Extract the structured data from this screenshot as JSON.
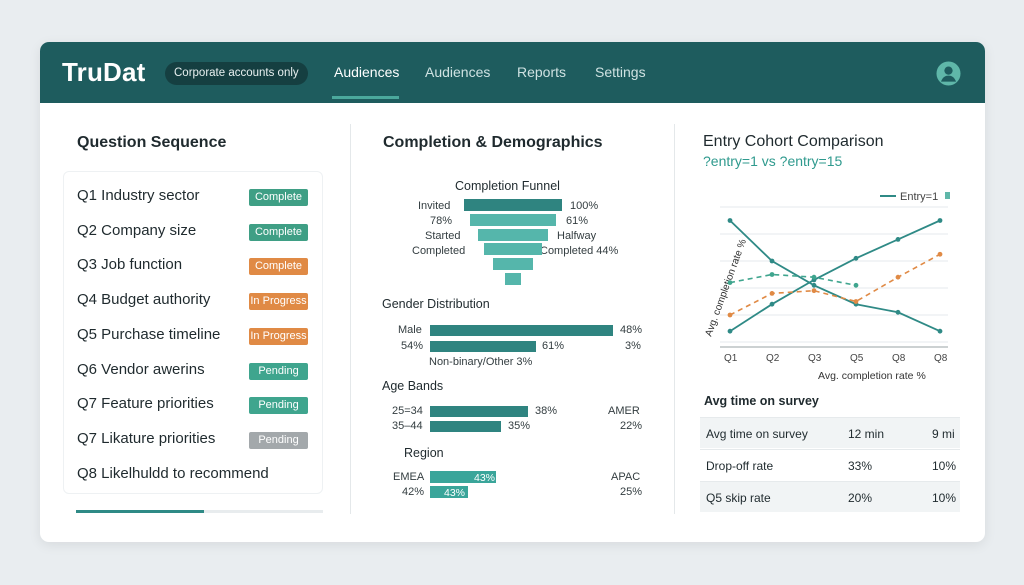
{
  "header": {
    "logo": "TruDat",
    "account_pill": "Corporate accounts only",
    "nav": [
      {
        "label": "Audiences",
        "active": true
      },
      {
        "label": "Audiences",
        "active": false
      },
      {
        "label": "Reports",
        "active": false
      },
      {
        "label": "Settings",
        "active": false
      }
    ],
    "avatar_icon": "user-avatar-icon"
  },
  "question_panel": {
    "title": "Question Sequence",
    "questions": [
      {
        "label": "Q1 Industry sector",
        "status": "Complete",
        "color": "#3f9f85"
      },
      {
        "label": "Q2 Company size",
        "status": "Complete",
        "color": "#3f9f85"
      },
      {
        "label": "Q3 Job function",
        "status": "Complete",
        "color": "#e08a45"
      },
      {
        "label": "Q4 Budget authority",
        "status": "In Progress",
        "color": "#e08a45"
      },
      {
        "label": "Q5 Purchase timeline",
        "status": "In Progress",
        "color": "#e08a45"
      },
      {
        "label": "Q6 Vendor awerins",
        "status": "Pending",
        "color": "#3fa58e"
      },
      {
        "label": "Q7 Feature priorities",
        "status": "Pending",
        "color": "#3fa58e"
      },
      {
        "label": "Q7 Likature priorities",
        "status": "Pending",
        "color": "#a3a8ab"
      },
      {
        "label": "Q8 Likelhuldd to recommend",
        "status": "",
        "color": ""
      }
    ],
    "progress_fraction": 0.52
  },
  "demographics_panel": {
    "title": "Completion & Demographics",
    "funnel": {
      "title": "Completion Funnel",
      "left_labels": [
        "Invited",
        "78%",
        "Started",
        "Completed"
      ],
      "right_labels": [
        "100%",
        "61%",
        "Halfway",
        "Completed 44%"
      ],
      "widths": [
        1.0,
        0.88,
        0.72,
        0.6,
        0.41,
        0.17
      ]
    },
    "gender": {
      "title": "Gender Distribution",
      "rows": [
        {
          "left": "Male",
          "right": "48%",
          "value": 1.0
        },
        {
          "left": "54%",
          "right": "3%",
          "mid": "61%",
          "value": 0.5
        }
      ],
      "note": "Non-binary/Other 3%"
    },
    "age": {
      "title": "Age Bands",
      "rows": [
        {
          "left": "25=34",
          "mid": "38%",
          "right": "AMER",
          "right_value": "",
          "value": 1.0
        },
        {
          "left": "35–44",
          "mid": "35%",
          "right": "22%",
          "value": 0.72
        }
      ]
    },
    "region": {
      "title": "Region",
      "rows": [
        {
          "left": "EMEA",
          "bar_label": "43%",
          "right": "APAC",
          "value": 1.0
        },
        {
          "left": "42%",
          "bar_label": "43%",
          "right": "25%",
          "value": 0.57
        }
      ]
    }
  },
  "cohort_panel": {
    "title": "Entry Cohort Comparison",
    "subtitle": "?entry=1 vs ?entry=15",
    "table_title": "Avg time on survey",
    "table_rows": [
      {
        "metric": "Avg time on survey",
        "a": "12 min",
        "b": "9 mi"
      },
      {
        "metric": "Drop-off rate",
        "a": "33%",
        "b": "10%"
      },
      {
        "metric": "Q5 skip rate",
        "a": "20%",
        "b": "10%"
      }
    ]
  },
  "chart_data": {
    "type": "line",
    "title": "",
    "xlabel": "Avg. completion rate %",
    "ylabel": "Avg. completion rate %",
    "categories": [
      "Q1",
      "Q2",
      "Q3",
      "Q5",
      "Q8",
      "Q8"
    ],
    "legend": [
      "Entry=1"
    ],
    "legend_position": "top-right",
    "grid": true,
    "ylim": [
      0,
      100
    ],
    "series": [
      {
        "name": "Entry=1",
        "color": "#2f8a86",
        "style": "solid",
        "values": [
          90,
          60,
          42,
          28,
          22,
          8
        ]
      },
      {
        "color": "#2f8a86",
        "style": "solid",
        "values": [
          8,
          28,
          46,
          62,
          76,
          90
        ]
      },
      {
        "color": "#3fa58e",
        "style": "dashed",
        "values": [
          44,
          50,
          48,
          42,
          null,
          null
        ]
      },
      {
        "color": "#e08a45",
        "style": "dashed",
        "values": [
          20,
          36,
          38,
          30,
          48,
          65
        ]
      }
    ]
  }
}
